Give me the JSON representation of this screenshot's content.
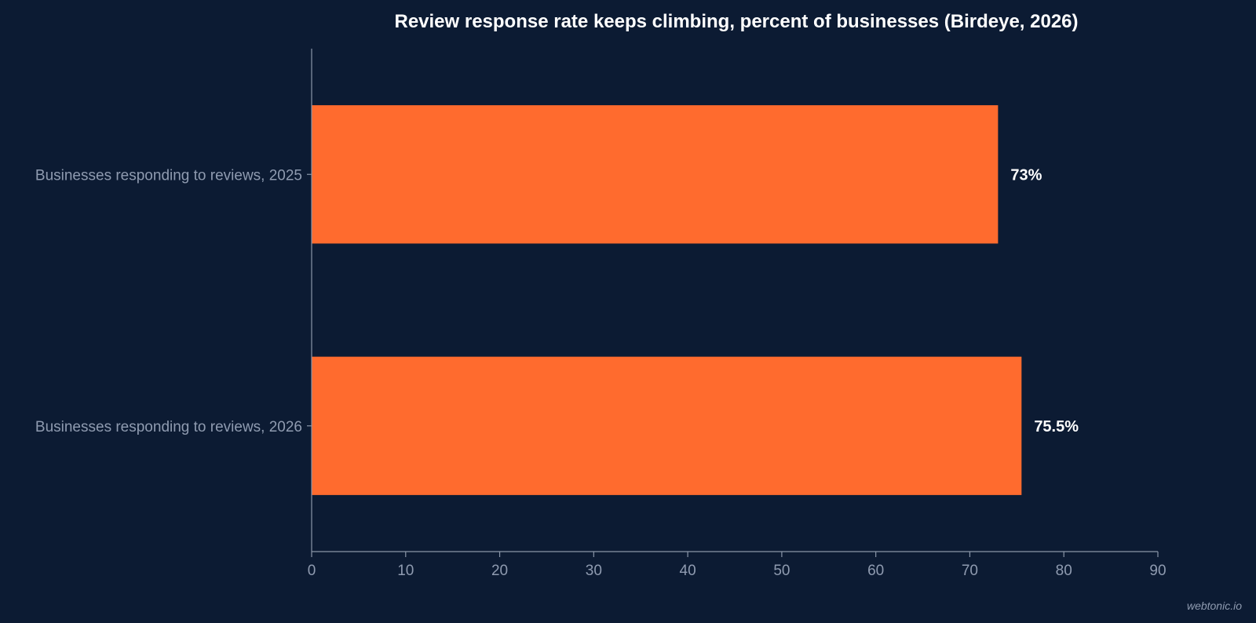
{
  "chart_data": {
    "type": "bar",
    "orientation": "horizontal",
    "title": "Review response rate keeps climbing, percent of businesses (Birdeye, 2026)",
    "categories": [
      "Businesses responding to reviews, 2025",
      "Businesses responding to reviews, 2026"
    ],
    "values": [
      73,
      75.5
    ],
    "value_labels": [
      "73%",
      "75.5%"
    ],
    "xlim": [
      0,
      90
    ],
    "xticks": [
      0,
      10,
      20,
      30,
      40,
      50,
      60,
      70,
      80,
      90
    ],
    "bar_color": "#ff6b2e",
    "background_color": "#0c1b33",
    "grid": false
  },
  "watermark": "webtonic.io"
}
